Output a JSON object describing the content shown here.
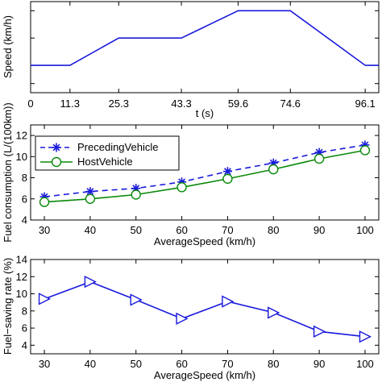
{
  "colors": {
    "series": "#1a1adc",
    "host": "#0a8a0a",
    "axis": "#000000",
    "background": "#ffffff"
  },
  "chart_data": [
    {
      "type": "line",
      "id": "speed",
      "xlabel": "t (s)",
      "ylabel": "Speed (km/h)",
      "x_ticks": [
        "0",
        "11.3",
        "25.3",
        "43.3",
        "59.6",
        "74.6",
        "96.1"
      ],
      "y_ticks": [],
      "xlim": [
        0,
        100
      ],
      "ylim": [
        0,
        1
      ],
      "series": [
        {
          "x": [
            0,
            11.3,
            25.3,
            43.3,
            59.6,
            74.6,
            96.1,
            100
          ],
          "y": [
            0.3,
            0.3,
            0.6,
            0.6,
            0.9,
            0.9,
            0.3,
            0.3
          ]
        }
      ],
      "grid": false
    },
    {
      "type": "line",
      "id": "fuel",
      "xlabel": "AverageSpeed (km/h)",
      "ylabel": "Fuel consumption (L/(100km))",
      "x_ticks": [
        "30",
        "40",
        "50",
        "60",
        "70",
        "80",
        "90",
        "100"
      ],
      "y_ticks": [
        "4",
        "6",
        "8",
        "10",
        "12"
      ],
      "xlim": [
        27,
        103
      ],
      "ylim": [
        4,
        13
      ],
      "legend_position": "top-left",
      "series": [
        {
          "name": "PrecedingVehicle",
          "marker": "star",
          "dash": true,
          "x": [
            30,
            40,
            50,
            60,
            70,
            80,
            90,
            100
          ],
          "y": [
            6.2,
            6.7,
            7.0,
            7.6,
            8.6,
            9.4,
            10.4,
            11.1
          ]
        },
        {
          "name": "HostVehicle",
          "marker": "circle",
          "dash": false,
          "x": [
            30,
            40,
            50,
            60,
            70,
            80,
            90,
            100
          ],
          "y": [
            5.7,
            6.0,
            6.4,
            7.1,
            7.9,
            8.8,
            9.8,
            10.6
          ]
        }
      ],
      "grid": false
    },
    {
      "type": "line",
      "id": "saving",
      "xlabel": "AverageSpeed (km/h)",
      "ylabel": "Fuel−saving rate (%)",
      "x_ticks": [
        "30",
        "40",
        "50",
        "60",
        "70",
        "80",
        "90",
        "100"
      ],
      "y_ticks": [
        "4",
        "6",
        "8",
        "10",
        "12",
        "14"
      ],
      "xlim": [
        27,
        103
      ],
      "ylim": [
        3,
        14
      ],
      "series": [
        {
          "marker": "triangle-right",
          "x": [
            30,
            40,
            50,
            60,
            70,
            80,
            90,
            100
          ],
          "y": [
            9.4,
            11.4,
            9.3,
            7.1,
            9.1,
            7.8,
            5.6,
            5.0
          ]
        }
      ],
      "grid": false
    }
  ]
}
